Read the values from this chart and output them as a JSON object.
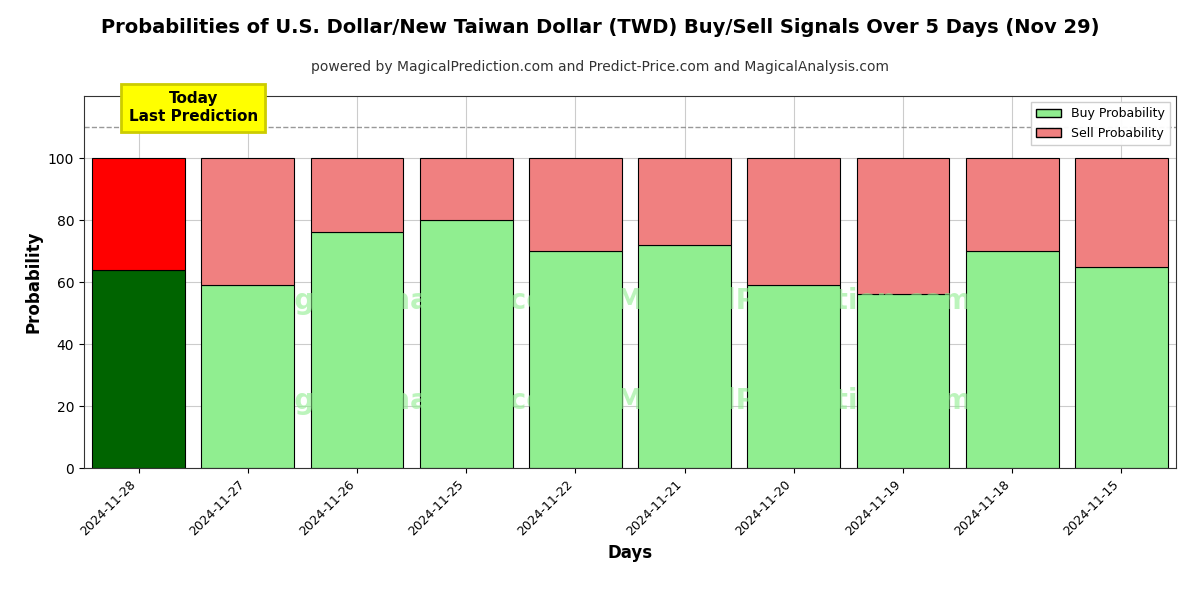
{
  "title": "Probabilities of U.S. Dollar/New Taiwan Dollar (TWD) Buy/Sell Signals Over 5 Days (Nov 29)",
  "subtitle": "powered by MagicalPrediction.com and Predict-Price.com and MagicalAnalysis.com",
  "xlabel": "Days",
  "ylabel": "Probability",
  "categories": [
    "2024-11-28",
    "2024-11-27",
    "2024-11-26",
    "2024-11-25",
    "2024-11-22",
    "2024-11-21",
    "2024-11-20",
    "2024-11-19",
    "2024-11-18",
    "2024-11-15"
  ],
  "buy_values": [
    64,
    59,
    76,
    80,
    70,
    72,
    59,
    56,
    70,
    65
  ],
  "sell_values": [
    36,
    41,
    24,
    20,
    30,
    28,
    41,
    44,
    30,
    35
  ],
  "today_bar_buy_color": "#006400",
  "today_bar_sell_color": "#FF0000",
  "other_bar_buy_color": "#90EE90",
  "other_bar_sell_color": "#F08080",
  "bar_edge_color": "#000000",
  "ylim": [
    0,
    120
  ],
  "yticks": [
    0,
    20,
    40,
    60,
    80,
    100
  ],
  "dashed_line_y": 110,
  "grid_color": "#cccccc",
  "annotation_text": "Today\nLast Prediction",
  "annotation_bg_color": "#FFFF00",
  "legend_buy_label": "Buy Probability",
  "legend_sell_label": "Sell Probability",
  "title_fontsize": 14,
  "subtitle_fontsize": 10,
  "axis_label_fontsize": 12,
  "bar_width": 0.85
}
